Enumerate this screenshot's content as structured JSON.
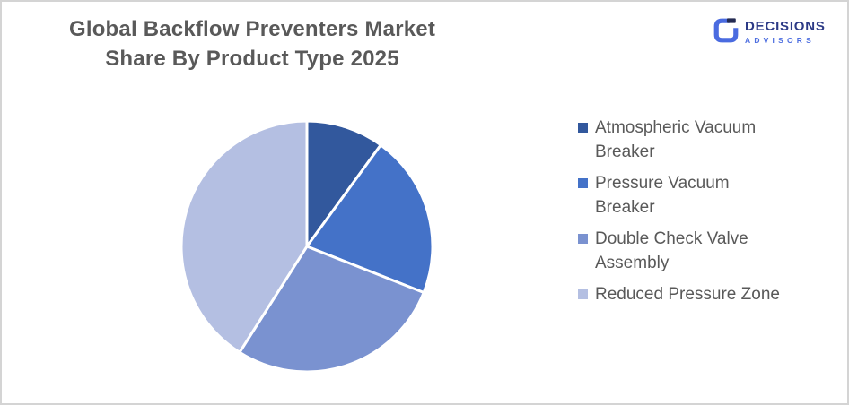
{
  "card": {
    "background": "#FFFFFF",
    "border_color": "#D4D4D4"
  },
  "title": {
    "line1": "Global Backflow Preventers Market",
    "line2": "Share By Product Type 2025",
    "color": "#595959"
  },
  "logo": {
    "brand": "DECISIONS",
    "subtitle": "ADVISORS",
    "brand_color": "#2C3A86",
    "subtitle_color": "#4D6EE0",
    "icon_blue": "#4A6BE0",
    "icon_dark": "#242B52"
  },
  "chart_data": {
    "type": "pie",
    "title": "Global Backflow Preventers Market Share By Product Type 2025",
    "categories": [
      "Atmospheric Vacuum Breaker",
      "Pressure Vacuum Breaker",
      "Double Check Valve Assembly",
      "Reduced Pressure Zone"
    ],
    "values_percent_estimated": [
      10,
      21,
      28,
      41
    ],
    "colors": [
      "#32589D",
      "#4472C8",
      "#7A92D0",
      "#B4BFE2"
    ],
    "start_angle_deg": 0,
    "direction": "clockwise",
    "slice_gap_color": "#FFFFFF",
    "slice_gap_width": 3,
    "data_labels": false,
    "legend_position": "right"
  },
  "legend": {
    "text_color": "#595959",
    "items": [
      {
        "label": "Atmospheric Vacuum Breaker",
        "color": "#32589D"
      },
      {
        "label": "Pressure Vacuum Breaker",
        "color": "#4472C8"
      },
      {
        "label": "Double Check Valve Assembly",
        "color": "#7A92D0"
      },
      {
        "label": "Reduced Pressure Zone",
        "color": "#B4BFE2"
      }
    ]
  }
}
